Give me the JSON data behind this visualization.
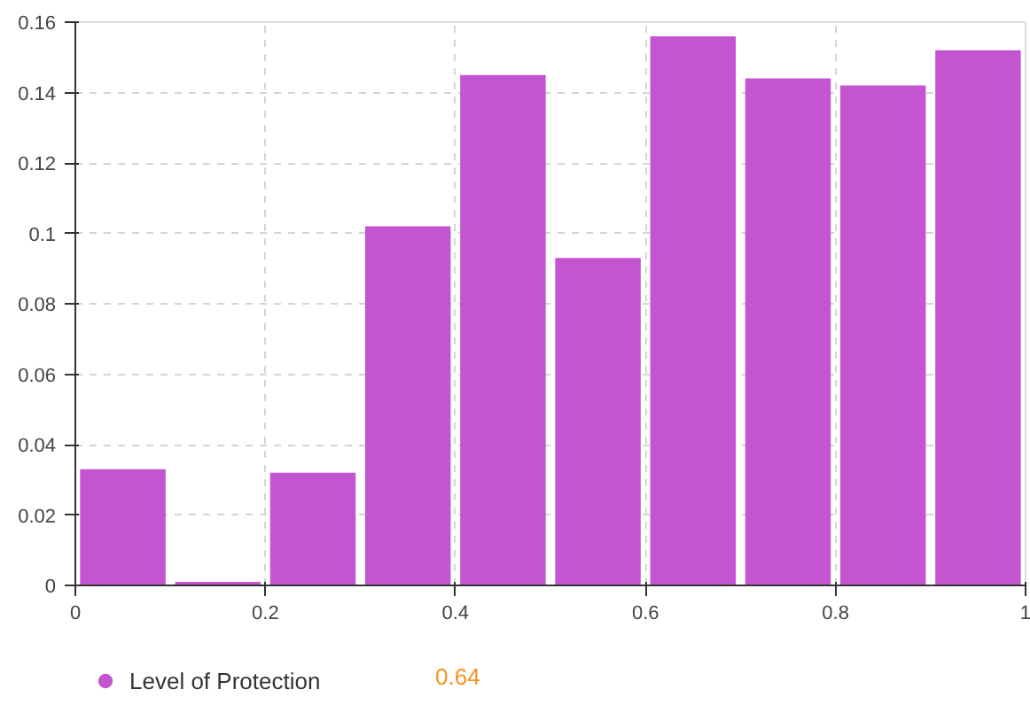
{
  "chart_data": {
    "type": "histogram",
    "bins": [
      0,
      0.1,
      0.2,
      0.3,
      0.4,
      0.5,
      0.6,
      0.7,
      0.8,
      0.9,
      1
    ],
    "series": [
      {
        "name": "Level of Protection",
        "color": "#c455d0",
        "values": [
          0.033,
          0.001,
          0.032,
          0.102,
          0.145,
          0.093,
          0.156,
          0.144,
          0.142,
          0.152
        ]
      }
    ],
    "xlim": [
      0,
      1
    ],
    "ylim": [
      0,
      0.16
    ],
    "xticks": [
      0,
      0.2,
      0.4,
      0.6,
      0.8,
      1
    ],
    "yticks": [
      0,
      0.02,
      0.04,
      0.06,
      0.08,
      0.1,
      0.12,
      0.14,
      0.16
    ],
    "grid": true,
    "legend": "bottom left",
    "marker": "circle",
    "annotations": [
      "0.64"
    ]
  }
}
